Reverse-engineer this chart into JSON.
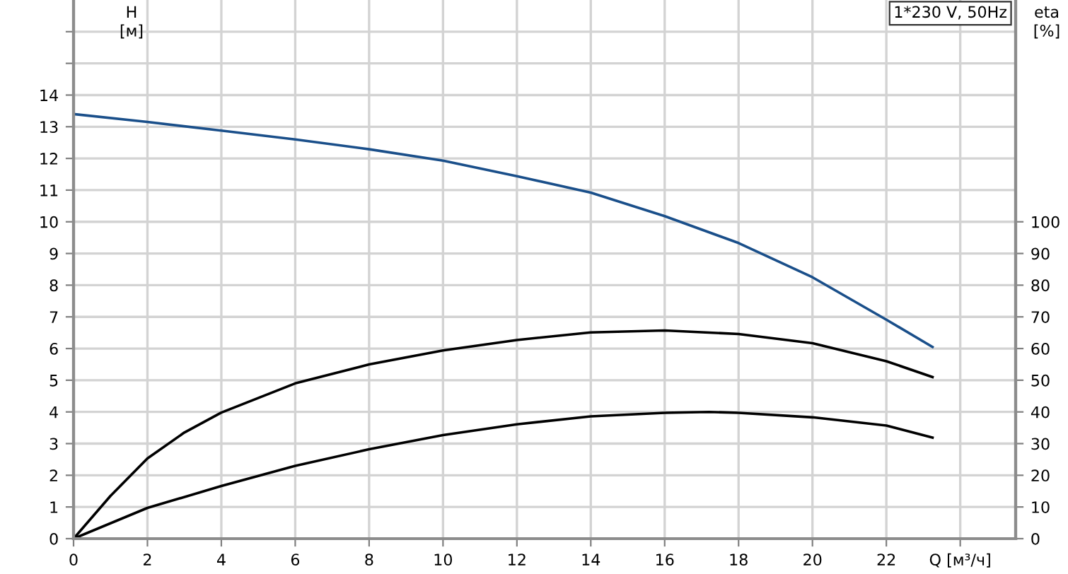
{
  "chart_data": {
    "type": "line",
    "ylabel": "H\n[м]",
    "y2label": "eta\n[%]",
    "annotations": [
      "1*230 V, 50Hz"
    ],
    "xlim": [
      0,
      25.5
    ],
    "xticks": [
      0,
      2,
      4,
      6,
      8,
      10,
      12,
      14,
      16,
      18,
      20,
      22,
      {
        "value": 24,
        "label": "Q [м³/ч]"
      }
    ],
    "ylim": [
      0,
      17
    ],
    "yticks": [
      0,
      1,
      2,
      3,
      4,
      5,
      6,
      7,
      8,
      9,
      10,
      11,
      12,
      13,
      14,
      {
        "value": 15,
        "label": null
      },
      {
        "value": 16,
        "label": null
      }
    ],
    "y2lim": [
      0,
      170
    ],
    "y2ticks": [
      0,
      10,
      20,
      30,
      40,
      50,
      60,
      70,
      80,
      90,
      100
    ],
    "grid": true,
    "marker": "none",
    "line_style": "solid",
    "series": [
      {
        "color": "#1a4f8a",
        "x": [
          0,
          2,
          4,
          6,
          8,
          10,
          12,
          14,
          16,
          18,
          20,
          22,
          23.25
        ],
        "values": [
          13.4,
          13.15,
          12.88,
          12.6,
          12.29,
          11.93,
          11.44,
          10.92,
          10.18,
          9.33,
          8.25,
          6.91,
          6.05
        ]
      },
      {
        "color": "#000000",
        "axis": "y2",
        "x": [
          0,
          1,
          2,
          3,
          4,
          6,
          8,
          10,
          12,
          14,
          16,
          18,
          20,
          22,
          23.25
        ],
        "values": [
          0,
          13.5,
          25.3,
          33.5,
          39.8,
          49,
          55,
          59.4,
          62.7,
          65.1,
          65.7,
          64.6,
          61.7,
          56,
          51
        ]
      },
      {
        "color": "#000000",
        "axis": "y2",
        "x": [
          0,
          2,
          4,
          6,
          8,
          10,
          12,
          14,
          16,
          17.2,
          18,
          20,
          22,
          23.25
        ],
        "values": [
          0,
          9.7,
          16.6,
          23,
          28.2,
          32.7,
          36.1,
          38.6,
          39.7,
          40,
          39.7,
          38.3,
          35.7,
          31.9
        ]
      }
    ]
  }
}
